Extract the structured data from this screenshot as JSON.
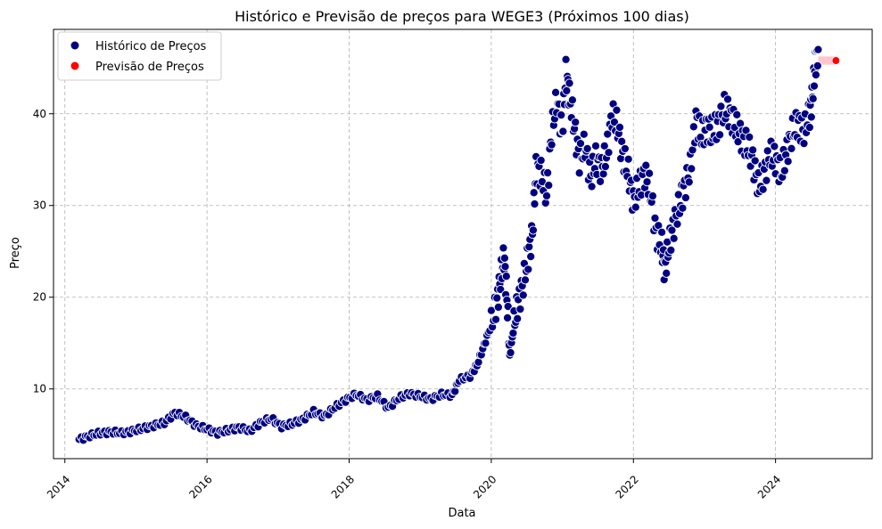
{
  "chart_data": {
    "type": "scatter",
    "title": "Histórico e Previsão de preços para WEGE3 (Próximos 100 dias)",
    "xlabel": "Data",
    "ylabel": "Preço",
    "xlim": [
      2013.84,
      2025.36
    ],
    "ylim": [
      2.4,
      49.2
    ],
    "x_ticks": [
      2014,
      2016,
      2018,
      2020,
      2022,
      2024
    ],
    "y_ticks": [
      10,
      20,
      30,
      40
    ],
    "grid": true,
    "legend_position": "top-left",
    "colors": {
      "history": "#000080",
      "forecast": "#ff0000",
      "forecast_band": "#ffb6c1",
      "grid": "#b0b0b0"
    },
    "series": [
      {
        "name": "Histórico de Preços",
        "points": [
          [
            2014.2,
            4.5
          ],
          [
            2014.35,
            4.9
          ],
          [
            2014.5,
            5.2
          ],
          [
            2014.65,
            5.3
          ],
          [
            2014.8,
            5.2
          ],
          [
            2014.95,
            5.4
          ],
          [
            2015.1,
            5.7
          ],
          [
            2015.25,
            6.0
          ],
          [
            2015.4,
            6.3
          ],
          [
            2015.55,
            7.4
          ],
          [
            2015.7,
            6.9
          ],
          [
            2015.85,
            6.0
          ],
          [
            2016.0,
            5.6
          ],
          [
            2016.15,
            5.2
          ],
          [
            2016.3,
            5.5
          ],
          [
            2016.45,
            5.8
          ],
          [
            2016.6,
            5.4
          ],
          [
            2016.75,
            6.3
          ],
          [
            2016.9,
            6.8
          ],
          [
            2017.05,
            5.9
          ],
          [
            2017.2,
            6.2
          ],
          [
            2017.35,
            6.7
          ],
          [
            2017.5,
            7.5
          ],
          [
            2017.65,
            7.0
          ],
          [
            2017.8,
            8.0
          ],
          [
            2017.95,
            8.8
          ],
          [
            2018.1,
            9.4
          ],
          [
            2018.25,
            8.8
          ],
          [
            2018.4,
            9.2
          ],
          [
            2018.55,
            7.9
          ],
          [
            2018.7,
            9.0
          ],
          [
            2018.85,
            9.5
          ],
          [
            2019.0,
            9.2
          ],
          [
            2019.15,
            8.9
          ],
          [
            2019.3,
            9.4
          ],
          [
            2019.45,
            9.3
          ],
          [
            2019.55,
            11.0
          ],
          [
            2019.7,
            11.4
          ],
          [
            2019.8,
            12.6
          ],
          [
            2019.9,
            14.8
          ],
          [
            2020.0,
            17.0
          ],
          [
            2020.08,
            19.5
          ],
          [
            2020.13,
            22.0
          ],
          [
            2020.18,
            24.5
          ],
          [
            2020.22,
            20.0
          ],
          [
            2020.26,
            13.5
          ],
          [
            2020.32,
            17.0
          ],
          [
            2020.38,
            19.5
          ],
          [
            2020.45,
            21.5
          ],
          [
            2020.52,
            24.5
          ],
          [
            2020.58,
            27.0
          ],
          [
            2020.63,
            34.0
          ],
          [
            2020.7,
            33.5
          ],
          [
            2020.78,
            31.0
          ],
          [
            2020.85,
            38.0
          ],
          [
            2020.92,
            41.5
          ],
          [
            2021.0,
            38.0
          ],
          [
            2021.05,
            44.5
          ],
          [
            2021.1,
            42.0
          ],
          [
            2021.17,
            38.5
          ],
          [
            2021.24,
            35.0
          ],
          [
            2021.32,
            36.5
          ],
          [
            2021.4,
            33.0
          ],
          [
            2021.47,
            35.0
          ],
          [
            2021.55,
            34.0
          ],
          [
            2021.62,
            35.5
          ],
          [
            2021.7,
            40.0
          ],
          [
            2021.78,
            38.5
          ],
          [
            2021.85,
            35.5
          ],
          [
            2021.93,
            33.5
          ],
          [
            2022.0,
            30.5
          ],
          [
            2022.08,
            32.0
          ],
          [
            2022.16,
            33.5
          ],
          [
            2022.24,
            31.5
          ],
          [
            2022.32,
            27.0
          ],
          [
            2022.4,
            25.5
          ],
          [
            2022.44,
            23.0
          ],
          [
            2022.5,
            25.5
          ],
          [
            2022.57,
            28.0
          ],
          [
            2022.65,
            30.0
          ],
          [
            2022.72,
            32.0
          ],
          [
            2022.8,
            34.0
          ],
          [
            2022.88,
            39.5
          ],
          [
            2022.96,
            37.5
          ],
          [
            2023.04,
            38.5
          ],
          [
            2023.12,
            38.0
          ],
          [
            2023.2,
            39.0
          ],
          [
            2023.28,
            40.5
          ],
          [
            2023.36,
            40.0
          ],
          [
            2023.44,
            38.5
          ],
          [
            2023.52,
            37.5
          ],
          [
            2023.6,
            36.5
          ],
          [
            2023.68,
            35.0
          ],
          [
            2023.76,
            32.0
          ],
          [
            2023.84,
            33.5
          ],
          [
            2023.92,
            35.5
          ],
          [
            2024.0,
            35.0
          ],
          [
            2024.08,
            33.5
          ],
          [
            2024.16,
            36.0
          ],
          [
            2024.24,
            38.0
          ],
          [
            2024.32,
            39.0
          ],
          [
            2024.4,
            38.0
          ],
          [
            2024.48,
            40.0
          ],
          [
            2024.52,
            42.0
          ],
          [
            2024.56,
            45.5
          ],
          [
            2024.6,
            47.0
          ]
        ]
      },
      {
        "name": "Previsão de Preços",
        "points": [
          [
            2024.6,
            45.8
          ],
          [
            2024.72,
            45.8
          ],
          [
            2024.85,
            45.8
          ]
        ]
      }
    ]
  }
}
